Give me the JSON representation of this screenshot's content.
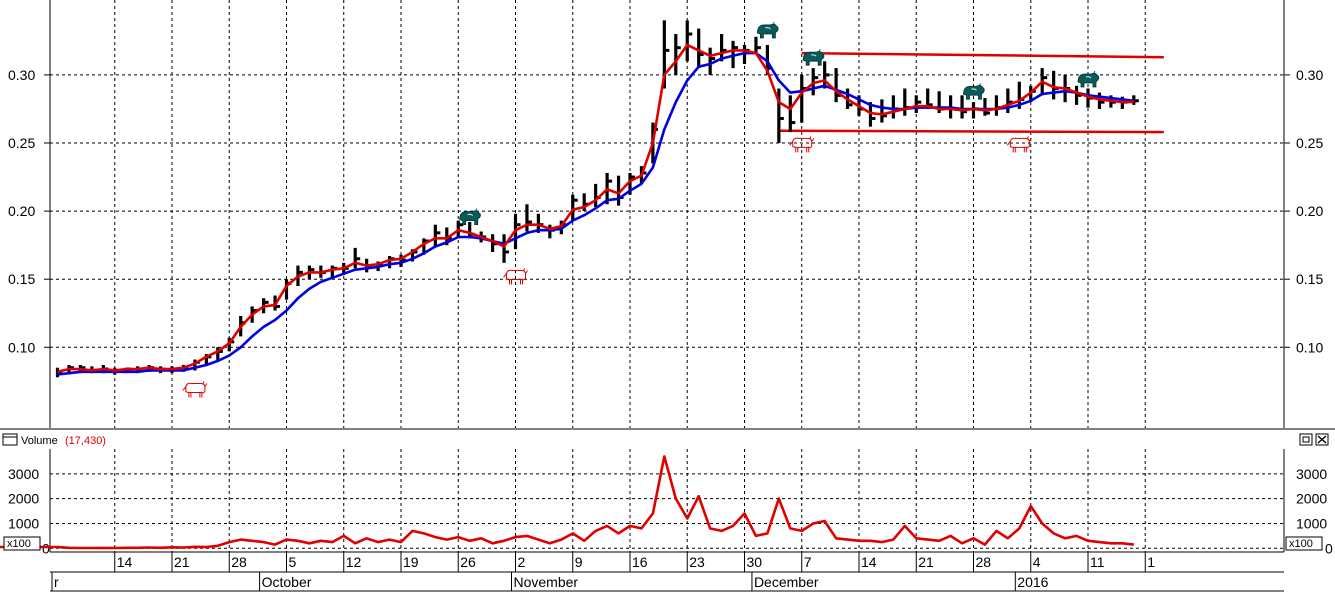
{
  "chart_data": [
    {
      "type": "line",
      "chart": "price",
      "ylim": [
        0.04,
        0.355
      ],
      "y_ticks": [
        0.1,
        0.15,
        0.2,
        0.25,
        0.3
      ],
      "y_tick_labels": [
        "0.10",
        "0.15",
        "0.20",
        "0.25",
        "0.30"
      ],
      "x": [
        "Sep 07",
        "Sep 08",
        "Sep 09",
        "Sep 10",
        "Sep 11",
        "Sep 14",
        "Sep 15",
        "Sep 16",
        "Sep 17",
        "Sep 18",
        "Sep 21",
        "Sep 22",
        "Sep 23",
        "Sep 24",
        "Sep 25",
        "Sep 28",
        "Sep 29",
        "Sep 30",
        "Oct 01",
        "Oct 02",
        "Oct 05",
        "Oct 06",
        "Oct 07",
        "Oct 08",
        "Oct 09",
        "Oct 12",
        "Oct 13",
        "Oct 14",
        "Oct 15",
        "Oct 16",
        "Oct 19",
        "Oct 20",
        "Oct 21",
        "Oct 22",
        "Oct 23",
        "Oct 26",
        "Oct 27",
        "Oct 28",
        "Oct 29",
        "Oct 30",
        "Nov 02",
        "Nov 03",
        "Nov 04",
        "Nov 05",
        "Nov 06",
        "Nov 09",
        "Nov 10",
        "Nov 11",
        "Nov 12",
        "Nov 13",
        "Nov 16",
        "Nov 17",
        "Nov 18",
        "Nov 19",
        "Nov 20",
        "Nov 23",
        "Nov 24",
        "Nov 25",
        "Nov 26",
        "Nov 27",
        "Nov 30",
        "Dec 01",
        "Dec 02",
        "Dec 03",
        "Dec 04",
        "Dec 07",
        "Dec 08",
        "Dec 09",
        "Dec 10",
        "Dec 11",
        "Dec 14",
        "Dec 15",
        "Dec 16",
        "Dec 17",
        "Dec 18",
        "Dec 21",
        "Dec 22",
        "Dec 23",
        "Dec 24",
        "Dec 25",
        "Dec 28",
        "Dec 29",
        "Dec 30",
        "Dec 31",
        "Jan 01",
        "Jan 04",
        "Jan 05",
        "Jan 06",
        "Jan 07",
        "Jan 08",
        "Jan 11",
        "Jan 12",
        "Jan 13",
        "Jan 14",
        "Jan 15"
      ],
      "series": [
        {
          "kind": "ohlc-bars",
          "color": "#000000",
          "high": [
            0.085,
            0.087,
            0.087,
            0.086,
            0.087,
            0.085,
            0.085,
            0.086,
            0.087,
            0.086,
            0.086,
            0.087,
            0.091,
            0.095,
            0.1,
            0.107,
            0.123,
            0.13,
            0.136,
            0.138,
            0.15,
            0.16,
            0.16,
            0.16,
            0.16,
            0.162,
            0.173,
            0.165,
            0.163,
            0.167,
            0.168,
            0.172,
            0.18,
            0.19,
            0.188,
            0.193,
            0.192,
            0.185,
            0.183,
            0.183,
            0.198,
            0.205,
            0.198,
            0.19,
            0.193,
            0.212,
            0.213,
            0.22,
            0.228,
            0.226,
            0.228,
            0.233,
            0.265,
            0.34,
            0.33,
            0.34,
            0.334,
            0.32,
            0.33,
            0.325,
            0.322,
            0.328,
            0.322,
            0.29,
            0.285,
            0.3,
            0.305,
            0.31,
            0.305,
            0.29,
            0.285,
            0.28,
            0.282,
            0.285,
            0.29,
            0.285,
            0.29,
            0.288,
            0.285,
            0.285,
            0.28,
            0.283,
            0.285,
            0.29,
            0.295,
            0.292,
            0.305,
            0.303,
            0.3,
            0.292,
            0.29,
            0.287,
            0.285,
            0.284,
            0.285
          ],
          "low": [
            0.078,
            0.08,
            0.081,
            0.081,
            0.081,
            0.08,
            0.081,
            0.081,
            0.082,
            0.081,
            0.081,
            0.082,
            0.083,
            0.087,
            0.09,
            0.097,
            0.108,
            0.118,
            0.125,
            0.127,
            0.135,
            0.145,
            0.15,
            0.151,
            0.15,
            0.153,
            0.158,
            0.155,
            0.156,
            0.158,
            0.159,
            0.163,
            0.168,
            0.174,
            0.175,
            0.18,
            0.18,
            0.177,
            0.17,
            0.162,
            0.172,
            0.185,
            0.184,
            0.18,
            0.183,
            0.193,
            0.2,
            0.203,
            0.205,
            0.204,
            0.212,
            0.22,
            0.235,
            0.29,
            0.3,
            0.31,
            0.305,
            0.3,
            0.31,
            0.305,
            0.308,
            0.315,
            0.3,
            0.25,
            0.258,
            0.265,
            0.285,
            0.29,
            0.28,
            0.275,
            0.27,
            0.262,
            0.265,
            0.268,
            0.27,
            0.272,
            0.275,
            0.272,
            0.268,
            0.268,
            0.268,
            0.27,
            0.27,
            0.272,
            0.275,
            0.28,
            0.285,
            0.282,
            0.28,
            0.278,
            0.276,
            0.275,
            0.276,
            0.275,
            0.278
          ],
          "close": [
            0.082,
            0.085,
            0.085,
            0.083,
            0.084,
            0.083,
            0.084,
            0.084,
            0.085,
            0.084,
            0.084,
            0.085,
            0.089,
            0.093,
            0.097,
            0.104,
            0.118,
            0.127,
            0.133,
            0.13,
            0.147,
            0.155,
            0.157,
            0.155,
            0.158,
            0.158,
            0.165,
            0.16,
            0.16,
            0.165,
            0.164,
            0.17,
            0.178,
            0.184,
            0.18,
            0.19,
            0.183,
            0.181,
            0.176,
            0.17,
            0.19,
            0.192,
            0.19,
            0.186,
            0.19,
            0.208,
            0.205,
            0.21,
            0.222,
            0.21,
            0.225,
            0.228,
            0.26,
            0.318,
            0.32,
            0.33,
            0.315,
            0.312,
            0.318,
            0.32,
            0.318,
            0.32,
            0.305,
            0.268,
            0.265,
            0.29,
            0.298,
            0.3,
            0.285,
            0.278,
            0.275,
            0.268,
            0.27,
            0.275,
            0.276,
            0.28,
            0.278,
            0.275,
            0.275,
            0.273,
            0.275,
            0.272,
            0.276,
            0.28,
            0.282,
            0.288,
            0.298,
            0.29,
            0.29,
            0.285,
            0.283,
            0.28,
            0.28,
            0.28,
            0.281
          ]
        },
        {
          "kind": "fast-moving-average",
          "color": "#e00000",
          "values": [
            0.082,
            0.084,
            0.084,
            0.083,
            0.084,
            0.083,
            0.084,
            0.084,
            0.085,
            0.084,
            0.084,
            0.085,
            0.088,
            0.093,
            0.097,
            0.103,
            0.115,
            0.124,
            0.13,
            0.131,
            0.145,
            0.152,
            0.155,
            0.155,
            0.157,
            0.158,
            0.162,
            0.16,
            0.161,
            0.164,
            0.165,
            0.17,
            0.176,
            0.18,
            0.18,
            0.186,
            0.184,
            0.181,
            0.178,
            0.174,
            0.186,
            0.19,
            0.19,
            0.187,
            0.189,
            0.201,
            0.203,
            0.208,
            0.216,
            0.213,
            0.222,
            0.226,
            0.25,
            0.3,
            0.31,
            0.322,
            0.318,
            0.314,
            0.316,
            0.318,
            0.318,
            0.316,
            0.303,
            0.28,
            0.275,
            0.287,
            0.294,
            0.296,
            0.288,
            0.282,
            0.277,
            0.272,
            0.271,
            0.273,
            0.275,
            0.277,
            0.277,
            0.275,
            0.275,
            0.274,
            0.275,
            0.274,
            0.275,
            0.278,
            0.281,
            0.287,
            0.295,
            0.291,
            0.29,
            0.287,
            0.284,
            0.282,
            0.281,
            0.28,
            0.28
          ]
        },
        {
          "kind": "slow-moving-average",
          "color": "#0000e0",
          "values": [
            0.08,
            0.081,
            0.082,
            0.082,
            0.082,
            0.082,
            0.082,
            0.082,
            0.083,
            0.083,
            0.083,
            0.083,
            0.085,
            0.087,
            0.09,
            0.094,
            0.1,
            0.108,
            0.115,
            0.12,
            0.127,
            0.136,
            0.143,
            0.148,
            0.151,
            0.154,
            0.157,
            0.158,
            0.159,
            0.161,
            0.162,
            0.165,
            0.169,
            0.174,
            0.177,
            0.181,
            0.181,
            0.18,
            0.178,
            0.176,
            0.18,
            0.184,
            0.186,
            0.186,
            0.187,
            0.193,
            0.197,
            0.202,
            0.208,
            0.209,
            0.215,
            0.22,
            0.232,
            0.26,
            0.28,
            0.296,
            0.306,
            0.308,
            0.312,
            0.314,
            0.316,
            0.316,
            0.31,
            0.296,
            0.287,
            0.288,
            0.29,
            0.292,
            0.289,
            0.286,
            0.282,
            0.278,
            0.276,
            0.275,
            0.275,
            0.276,
            0.276,
            0.276,
            0.276,
            0.275,
            0.275,
            0.275,
            0.275,
            0.276,
            0.278,
            0.281,
            0.286,
            0.287,
            0.288,
            0.287,
            0.285,
            0.284,
            0.283,
            0.282,
            0.281
          ]
        }
      ],
      "trend_lines": [
        {
          "from": {
            "x": "Dec 07",
            "y": 0.316
          },
          "to": {
            "x": "Jan 15",
            "y": 0.313
          },
          "color": "#e00000"
        },
        {
          "from": {
            "x": "Dec 03",
            "y": 0.259
          },
          "to": {
            "x": "Jan 15",
            "y": 0.258
          },
          "color": "#e00000"
        }
      ],
      "signals": [
        {
          "kind": "bull",
          "x": "Sep 23",
          "y": 0.069,
          "icon": "bull-icon",
          "color": "#e00000"
        },
        {
          "kind": "bear",
          "x": "Oct 27",
          "y": 0.196,
          "icon": "bear-icon",
          "color": "#0a5a5a"
        },
        {
          "kind": "bull",
          "x": "Nov 02",
          "y": 0.152,
          "icon": "bull-icon",
          "color": "#e00000"
        },
        {
          "kind": "bear",
          "x": "Dec 02",
          "y": 0.333,
          "icon": "bear-icon",
          "color": "#0a5a5a"
        },
        {
          "kind": "bull",
          "x": "Dec 07",
          "y": 0.249,
          "icon": "bull-icon",
          "color": "#e00000"
        },
        {
          "kind": "bear",
          "x": "Dec 08",
          "y": 0.313,
          "icon": "bear-icon",
          "color": "#0a5a5a"
        },
        {
          "kind": "bear",
          "x": "Dec 28",
          "y": 0.288,
          "icon": "bear-icon",
          "color": "#0a5a5a"
        },
        {
          "kind": "bull",
          "x": "Jan 01",
          "y": 0.249,
          "icon": "bull-icon",
          "color": "#e00000"
        },
        {
          "kind": "bear",
          "x": "Jan 11",
          "y": 0.297,
          "icon": "bear-icon",
          "color": "#0a5a5a"
        }
      ]
    },
    {
      "type": "line",
      "chart": "volume",
      "title": "Volume",
      "value_label": "(17,430)",
      "scale_label": "x100",
      "color": "#e00000",
      "ylim": [
        -150,
        4000
      ],
      "y_ticks": [
        0,
        1000,
        2000,
        3000
      ],
      "y_tick_labels": [
        "0",
        "1000",
        "2000",
        "3000"
      ],
      "values": [
        50,
        20,
        10,
        10,
        15,
        10,
        20,
        20,
        30,
        20,
        40,
        30,
        60,
        50,
        100,
        250,
        350,
        300,
        250,
        150,
        350,
        300,
        200,
        300,
        250,
        500,
        200,
        400,
        250,
        350,
        250,
        700,
        600,
        450,
        350,
        450,
        300,
        400,
        200,
        300,
        450,
        500,
        350,
        200,
        350,
        600,
        300,
        700,
        900,
        600,
        900,
        800,
        1400,
        3700,
        2000,
        1200,
        2100,
        800,
        700,
        900,
        1400,
        500,
        600,
        2000,
        800,
        700,
        1000,
        1100,
        400,
        350,
        300,
        300,
        250,
        350,
        900,
        400,
        350,
        300,
        500,
        200,
        400,
        150,
        700,
        400,
        800,
        1700,
        1000,
        600,
        400,
        500,
        300,
        250,
        200,
        200,
        150
      ]
    }
  ],
  "x_axis": {
    "ticks": [
      {
        "x": "Sep 14",
        "label": "14"
      },
      {
        "x": "Sep 21",
        "label": "21"
      },
      {
        "x": "Sep 28",
        "label": "28"
      },
      {
        "x": "Oct 05",
        "label": "5"
      },
      {
        "x": "Oct 12",
        "label": "12"
      },
      {
        "x": "Oct 19",
        "label": "19"
      },
      {
        "x": "Oct 26",
        "label": "26"
      },
      {
        "x": "Nov 02",
        "label": "2"
      },
      {
        "x": "Nov 09",
        "label": "9"
      },
      {
        "x": "Nov 16",
        "label": "16"
      },
      {
        "x": "Nov 23",
        "label": "23"
      },
      {
        "x": "Nov 30",
        "label": "30"
      },
      {
        "x": "Dec 07",
        "label": "7"
      },
      {
        "x": "Dec 14",
        "label": "14"
      },
      {
        "x": "Dec 21",
        "label": "21"
      },
      {
        "x": "Dec 28",
        "label": "28"
      },
      {
        "x": "Jan 04",
        "label": "4"
      },
      {
        "x": "Jan 11",
        "label": "11"
      },
      {
        "x": "Jan 18",
        "label": "1"
      }
    ],
    "months": [
      {
        "x": "Sep 07",
        "label": "r"
      },
      {
        "x": "Oct 01",
        "label": "October"
      },
      {
        "x": "Nov 02",
        "label": "November"
      },
      {
        "x": "Dec 01",
        "label": "December"
      },
      {
        "x": "Jan 01",
        "label": "2016"
      }
    ]
  }
}
